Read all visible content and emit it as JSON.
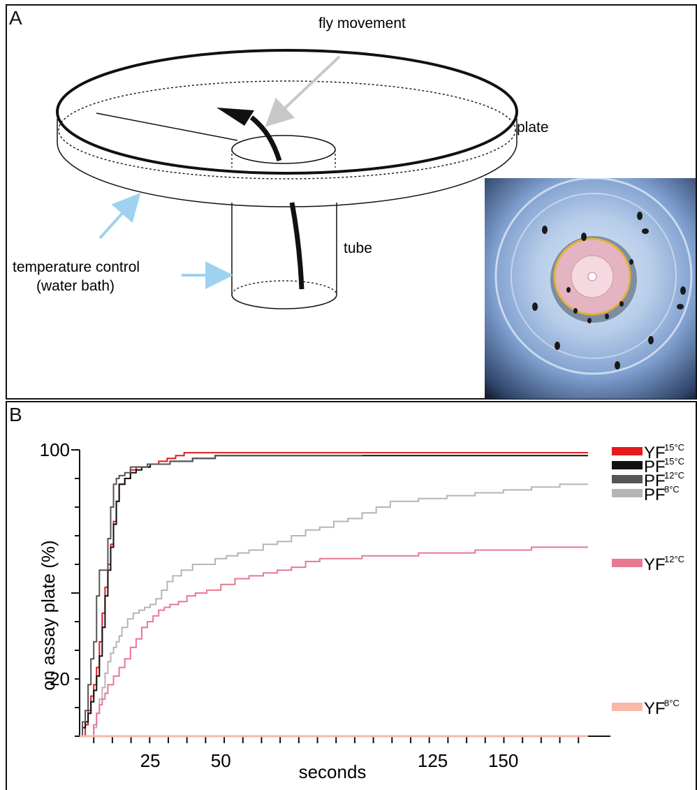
{
  "panel_a": {
    "letter": "A",
    "labels": {
      "fly_movement": "fly movement",
      "plate": "plate",
      "tube": "tube",
      "temp_control_1": "temperature control",
      "temp_control_2": "(water bath)"
    },
    "colors": {
      "arrow_gray": "#c8c8c8",
      "arrow_blue": "#9ed2ee"
    }
  },
  "panel_b": {
    "letter": "B",
    "chart_data": {
      "type": "line",
      "title": "",
      "xlabel": "seconds",
      "ylabel": "on assay plate (%)",
      "xlim": [
        0,
        180
      ],
      "ylim": [
        0,
        100
      ],
      "xticks": [
        25,
        50,
        125,
        150
      ],
      "yticks": [
        20,
        100
      ],
      "series": [
        {
          "name": "YF",
          "superscript": "15°C",
          "color": "#e41a1c",
          "x": [
            0,
            2,
            3,
            4,
            5,
            6,
            7,
            8,
            9,
            10,
            11,
            12,
            13,
            14,
            16,
            18,
            20,
            22,
            25,
            28,
            31,
            34,
            37,
            40,
            60,
            180
          ],
          "y": [
            0,
            4,
            9,
            14,
            18,
            24,
            33,
            43,
            52,
            60,
            67,
            75,
            82,
            88,
            90,
            93,
            94,
            94,
            95,
            96,
            97,
            98,
            99,
            99,
            99,
            99
          ]
        },
        {
          "name": "PF",
          "superscript": "15°C",
          "color": "#111111",
          "x": [
            0,
            1,
            2,
            3,
            4,
            5,
            6,
            7,
            8,
            9,
            10,
            11,
            12,
            13,
            14,
            16,
            18,
            20,
            22,
            25,
            28,
            32,
            36,
            40,
            44,
            48,
            50,
            60,
            180
          ],
          "y": [
            0,
            3,
            5,
            8,
            12,
            16,
            21,
            28,
            38,
            49,
            58,
            66,
            74,
            82,
            88,
            90,
            92,
            93,
            94,
            95,
            95,
            96,
            96,
            97,
            97,
            98,
            98,
            98,
            98
          ]
        },
        {
          "name": "PF",
          "superscript": "12°C",
          "color": "#555555",
          "x": [
            0,
            1,
            2,
            3,
            4,
            5,
            6,
            7,
            9,
            10,
            11,
            12,
            13,
            14,
            16,
            18,
            20,
            22,
            24,
            26,
            28,
            32,
            36,
            40,
            44,
            48,
            52,
            60,
            100
          ],
          "y": [
            0,
            5,
            9,
            18,
            27,
            33,
            49,
            58,
            58,
            69,
            80,
            88,
            90,
            91,
            92,
            94,
            94,
            94,
            95,
            95,
            95,
            96,
            96,
            97,
            97,
            98,
            98,
            98,
            98
          ]
        },
        {
          "name": "PF",
          "superscript": "8°C",
          "color": "#b5b5b5",
          "x": [
            0,
            5,
            6,
            7,
            8,
            9,
            10,
            11,
            12,
            13,
            14,
            15,
            17,
            19,
            21,
            23,
            25,
            27,
            29,
            31,
            33,
            36,
            40,
            44,
            48,
            52,
            56,
            60,
            65,
            70,
            75,
            80,
            85,
            90,
            95,
            100,
            105,
            110,
            115,
            120,
            130,
            140,
            150,
            160,
            170,
            180
          ],
          "y": [
            0,
            3,
            8,
            13,
            17,
            22,
            26,
            29,
            31,
            33,
            35,
            38,
            41,
            43,
            44,
            45,
            46,
            48,
            51,
            54,
            56,
            58,
            60,
            60,
            62,
            63,
            64,
            65,
            67,
            68,
            70,
            72,
            73,
            75,
            76,
            78,
            80,
            82,
            82,
            83,
            84,
            85,
            86,
            87,
            88,
            88
          ]
        },
        {
          "name": "YF",
          "superscript": "12°C",
          "color": "#e87890",
          "x": [
            0,
            5,
            6,
            7,
            8,
            9,
            10,
            12,
            14,
            16,
            18,
            20,
            22,
            24,
            26,
            28,
            30,
            32,
            35,
            38,
            41,
            45,
            50,
            55,
            60,
            65,
            70,
            75,
            80,
            85,
            90,
            100,
            110,
            120,
            130,
            140,
            150,
            160,
            170,
            180
          ],
          "y": [
            0,
            4,
            8,
            11,
            13,
            15,
            18,
            21,
            24,
            27,
            31,
            34,
            38,
            40,
            42,
            44,
            45,
            46,
            47,
            49,
            50,
            51,
            53,
            55,
            56,
            57,
            58,
            59,
            61,
            62,
            62,
            63,
            63,
            64,
            64,
            65,
            65,
            66,
            66,
            66
          ]
        },
        {
          "name": "YF",
          "superscript": "8°C",
          "color": "#f9b8a8",
          "x": [
            0,
            180
          ],
          "y": [
            0,
            0
          ]
        }
      ],
      "legend_placement": "right",
      "grid": false
    }
  }
}
